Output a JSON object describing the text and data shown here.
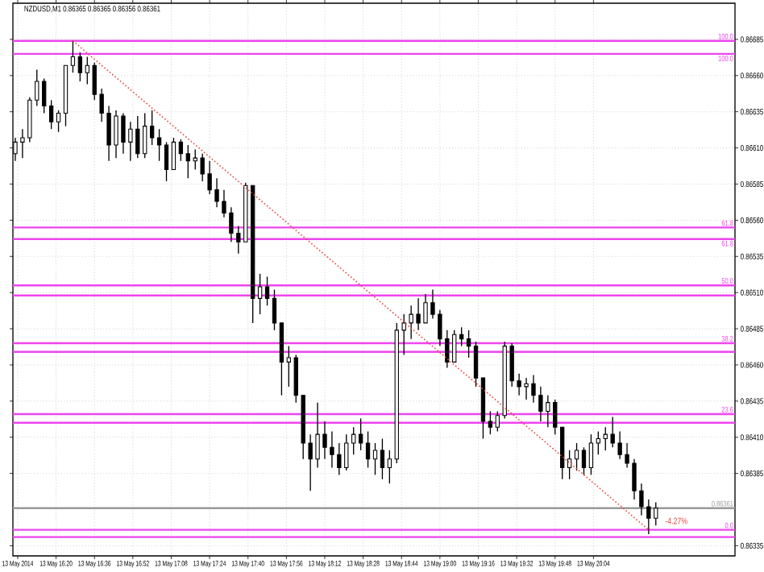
{
  "chart_data": {
    "type": "candlestick",
    "title": "NZDUSD,M1  0.86365 0.86365 0.86356 0.86361",
    "color": "#000000",
    "x": [
      "2014-05-13T16:03",
      "2014-05-13T16:06",
      "2014-05-13T16:09",
      "2014-05-13T16:12",
      "2014-05-13T16:15",
      "2014-05-13T16:18",
      "2014-05-13T16:21",
      "2014-05-13T16:24",
      "2014-05-13T16:27",
      "2014-05-13T16:30",
      "2014-05-13T16:33",
      "2014-05-13T16:36",
      "2014-05-13T16:39",
      "2014-05-13T16:42",
      "2014-05-13T16:45",
      "2014-05-13T16:48",
      "2014-05-13T16:51",
      "2014-05-13T16:54",
      "2014-05-13T16:57",
      "2014-05-13T17:00",
      "2014-05-13T17:03",
      "2014-05-13T17:06",
      "2014-05-13T17:09",
      "2014-05-13T17:12",
      "2014-05-13T17:15",
      "2014-05-13T17:18",
      "2014-05-13T17:21",
      "2014-05-13T17:24",
      "2014-05-13T17:27",
      "2014-05-13T17:30",
      "2014-05-13T17:33",
      "2014-05-13T17:36",
      "2014-05-13T17:39",
      "2014-05-13T17:42",
      "2014-05-13T17:45",
      "2014-05-13T17:48",
      "2014-05-13T17:51",
      "2014-05-13T17:54",
      "2014-05-13T17:57",
      "2014-05-13T18:00",
      "2014-05-13T18:03",
      "2014-05-13T18:06",
      "2014-05-13T18:09",
      "2014-05-13T18:12",
      "2014-05-13T18:15",
      "2014-05-13T18:18",
      "2014-05-13T18:21",
      "2014-05-13T18:24",
      "2014-05-13T18:27",
      "2014-05-13T18:30",
      "2014-05-13T18:33",
      "2014-05-13T18:36",
      "2014-05-13T18:39",
      "2014-05-13T18:42",
      "2014-05-13T18:45",
      "2014-05-13T18:48",
      "2014-05-13T18:51",
      "2014-05-13T18:54",
      "2014-05-13T18:57",
      "2014-05-13T19:00",
      "2014-05-13T19:03",
      "2014-05-13T19:06",
      "2014-05-13T19:09",
      "2014-05-13T19:12",
      "2014-05-13T19:15",
      "2014-05-13T19:18",
      "2014-05-13T19:21",
      "2014-05-13T19:24",
      "2014-05-13T19:27",
      "2014-05-13T19:30",
      "2014-05-13T19:33",
      "2014-05-13T19:36",
      "2014-05-13T19:39",
      "2014-05-13T19:42",
      "2014-05-13T19:45",
      "2014-05-13T19:48",
      "2014-05-13T19:51",
      "2014-05-13T19:54",
      "2014-05-13T19:57",
      "2014-05-13T20:00",
      "2014-05-13T20:03",
      "2014-05-13T20:06",
      "2014-05-13T20:09",
      "2014-05-13T20:12",
      "2014-05-13T20:15",
      "2014-05-13T20:18",
      "2014-05-13T20:21",
      "2014-05-13T20:24",
      "2014-05-13T20:27",
      "2014-05-13T20:30"
    ],
    "ohlc": [
      [
        0.86606,
        0.86617,
        0.86601,
        0.86614
      ],
      [
        0.86614,
        0.86623,
        0.86603,
        0.86617
      ],
      [
        0.86617,
        0.86645,
        0.86614,
        0.86643
      ],
      [
        0.86643,
        0.86664,
        0.86639,
        0.86656
      ],
      [
        0.86656,
        0.86658,
        0.86634,
        0.86639
      ],
      [
        0.86639,
        0.86643,
        0.86623,
        0.86628
      ],
      [
        0.86628,
        0.86636,
        0.86621,
        0.86634
      ],
      [
        0.86634,
        0.86667,
        0.86625,
        0.86667
      ],
      [
        0.86667,
        0.86684,
        0.86662,
        0.86673
      ],
      [
        0.86673,
        0.86676,
        0.86656,
        0.86662
      ],
      [
        0.86662,
        0.86673,
        0.86654,
        0.86667
      ],
      [
        0.86667,
        0.86669,
        0.86643,
        0.86647
      ],
      [
        0.86647,
        0.86651,
        0.86628,
        0.86634
      ],
      [
        0.86634,
        0.86639,
        0.86601,
        0.86612
      ],
      [
        0.86612,
        0.86636,
        0.86603,
        0.86632
      ],
      [
        0.86632,
        0.86634,
        0.86606,
        0.86614
      ],
      [
        0.86614,
        0.86628,
        0.86601,
        0.86623
      ],
      [
        0.86623,
        0.86632,
        0.86603,
        0.86606
      ],
      [
        0.86606,
        0.86634,
        0.86603,
        0.86625
      ],
      [
        0.86625,
        0.86636,
        0.86612,
        0.86617
      ],
      [
        0.86617,
        0.86623,
        0.86601,
        0.86612
      ],
      [
        0.86612,
        0.86614,
        0.86587,
        0.86595
      ],
      [
        0.86595,
        0.86617,
        0.86595,
        0.86614
      ],
      [
        0.86614,
        0.86616,
        0.86601,
        0.86606
      ],
      [
        0.86606,
        0.86612,
        0.86589,
        0.86601
      ],
      [
        0.86601,
        0.86609,
        0.86595,
        0.86603
      ],
      [
        0.86603,
        0.86606,
        0.86587,
        0.86592
      ],
      [
        0.86592,
        0.86601,
        0.86578,
        0.86581
      ],
      [
        0.86581,
        0.86589,
        0.86569,
        0.86573
      ],
      [
        0.86573,
        0.86581,
        0.86562,
        0.86565
      ],
      [
        0.86565,
        0.86569,
        0.86545,
        0.86551
      ],
      [
        0.86551,
        0.86556,
        0.86537,
        0.86545
      ],
      [
        0.86545,
        0.86586,
        0.86545,
        0.86584
      ],
      [
        0.86584,
        0.86584,
        0.86489,
        0.86506
      ],
      [
        0.86506,
        0.86523,
        0.86495,
        0.86514
      ],
      [
        0.86514,
        0.86521,
        0.86501,
        0.86506
      ],
      [
        0.86506,
        0.86512,
        0.86484,
        0.86489
      ],
      [
        0.86489,
        0.86489,
        0.86439,
        0.86462
      ],
      [
        0.86462,
        0.86473,
        0.86445,
        0.86465
      ],
      [
        0.86465,
        0.86467,
        0.86434,
        0.86439
      ],
      [
        0.86439,
        0.86439,
        0.86395,
        0.86406
      ],
      [
        0.86406,
        0.86412,
        0.86373,
        0.86395
      ],
      [
        0.86395,
        0.86434,
        0.86389,
        0.86412
      ],
      [
        0.86412,
        0.86421,
        0.86395,
        0.86403
      ],
      [
        0.86403,
        0.86414,
        0.86389,
        0.86398
      ],
      [
        0.86398,
        0.86406,
        0.86384,
        0.86389
      ],
      [
        0.86389,
        0.86412,
        0.86387,
        0.86406
      ],
      [
        0.86406,
        0.86417,
        0.86398,
        0.86412
      ],
      [
        0.86412,
        0.86423,
        0.86401,
        0.86406
      ],
      [
        0.86406,
        0.86414,
        0.86389,
        0.86395
      ],
      [
        0.86395,
        0.86406,
        0.86384,
        0.86401
      ],
      [
        0.86401,
        0.86409,
        0.86381,
        0.86389
      ],
      [
        0.86389,
        0.86401,
        0.86378,
        0.86395
      ],
      [
        0.86395,
        0.86489,
        0.86392,
        0.86484
      ],
      [
        0.86484,
        0.86495,
        0.86467,
        0.86489
      ],
      [
        0.86489,
        0.86501,
        0.86478,
        0.86495
      ],
      [
        0.86495,
        0.86506,
        0.86484,
        0.86489
      ],
      [
        0.86489,
        0.86509,
        0.86489,
        0.86503
      ],
      [
        0.86503,
        0.86512,
        0.86492,
        0.86495
      ],
      [
        0.86495,
        0.86498,
        0.86473,
        0.86478
      ],
      [
        0.86478,
        0.86484,
        0.86458,
        0.86462
      ],
      [
        0.86462,
        0.86484,
        0.86462,
        0.86481
      ],
      [
        0.86481,
        0.86486,
        0.86473,
        0.86478
      ],
      [
        0.86478,
        0.86484,
        0.86465,
        0.86473
      ],
      [
        0.86473,
        0.86476,
        0.86445,
        0.86451
      ],
      [
        0.86451,
        0.86451,
        0.86409,
        0.86421
      ],
      [
        0.86421,
        0.86428,
        0.86412,
        0.86417
      ],
      [
        0.86417,
        0.86428,
        0.86414,
        0.86425
      ],
      [
        0.86425,
        0.86476,
        0.86423,
        0.86473
      ],
      [
        0.86473,
        0.86475,
        0.86445,
        0.86449
      ],
      [
        0.86449,
        0.86454,
        0.86439,
        0.86445
      ],
      [
        0.86445,
        0.86451,
        0.86436,
        0.86447
      ],
      [
        0.86447,
        0.86453,
        0.86434,
        0.86439
      ],
      [
        0.86439,
        0.86445,
        0.86421,
        0.86428
      ],
      [
        0.86428,
        0.86439,
        0.86417,
        0.86434
      ],
      [
        0.86434,
        0.86436,
        0.86412,
        0.86417
      ],
      [
        0.86417,
        0.86417,
        0.86381,
        0.86389
      ],
      [
        0.86389,
        0.86401,
        0.86381,
        0.86395
      ],
      [
        0.86395,
        0.86406,
        0.86387,
        0.86401
      ],
      [
        0.86401,
        0.86403,
        0.86384,
        0.86389
      ],
      [
        0.86389,
        0.86412,
        0.86384,
        0.86406
      ],
      [
        0.86406,
        0.86414,
        0.86398,
        0.86409
      ],
      [
        0.86409,
        0.86417,
        0.86401,
        0.86412
      ],
      [
        0.86412,
        0.86424,
        0.86403,
        0.86406
      ],
      [
        0.86406,
        0.86414,
        0.86395,
        0.86398
      ],
      [
        0.86398,
        0.86406,
        0.86389,
        0.86392
      ],
      [
        0.86392,
        0.86395,
        0.86367,
        0.86373
      ],
      [
        0.86373,
        0.86378,
        0.86356,
        0.86362
      ],
      [
        0.86362,
        0.86367,
        0.86343,
        0.86354
      ],
      [
        0.86354,
        0.86365,
        0.86349,
        0.86361
      ]
    ],
    "series": [
      {
        "type": "line",
        "x": [
          "2014-05-13T16:27",
          "2014-05-13T20:27"
        ],
        "values": [
          0.86684,
          0.86346
        ],
        "color": "#e8453c",
        "line_style": "dotted"
      }
    ],
    "annotations": [
      {
        "text": "-4.27%",
        "x": "2014-05-13T20:27",
        "y": 0.86346
      },
      "100.0",
      "100.0",
      "61.8",
      "61.8",
      "50.0",
      "38.2",
      "23.6",
      "0.0"
    ],
    "ref_lines": [
      {
        "axis": "y",
        "value": 0.86684,
        "color": "#ee44ee"
      },
      {
        "axis": "y",
        "value": 0.86675,
        "color": "#ee44ee"
      },
      {
        "axis": "y",
        "value": 0.86555,
        "color": "#ee44ee"
      },
      {
        "axis": "y",
        "value": 0.86547,
        "color": "#ee44ee"
      },
      {
        "axis": "y",
        "value": 0.86515,
        "color": "#ee44ee"
      },
      {
        "axis": "y",
        "value": 0.86508,
        "color": "#ee44ee"
      },
      {
        "axis": "y",
        "value": 0.86475,
        "color": "#ee44ee"
      },
      {
        "axis": "y",
        "value": 0.86469,
        "color": "#ee44ee"
      },
      {
        "axis": "y",
        "value": 0.86426,
        "color": "#ee44ee"
      },
      {
        "axis": "y",
        "value": 0.8642,
        "color": "#ee44ee"
      },
      {
        "axis": "y",
        "value": 0.86346,
        "color": "#ee44ee"
      },
      {
        "axis": "y",
        "value": 0.86341,
        "color": "#ee44ee"
      },
      {
        "axis": "y",
        "value": 0.86361,
        "label": "0.86361",
        "color": "#9a9a9a"
      }
    ],
    "xlim": [
      "2014-05-13T16:02",
      "2014-05-13T21:03"
    ],
    "ylim": [
      0.86328,
      0.8671
    ],
    "xticks": [
      {
        "value": "2014-05-13T16:04",
        "label": "13 May 2014"
      },
      {
        "value": "2014-05-13T16:20",
        "label": "13 May 16:20"
      },
      {
        "value": "2014-05-13T16:36",
        "label": "13 May 16:36"
      },
      {
        "value": "2014-05-13T16:52",
        "label": "13 May 16:52"
      },
      {
        "value": "2014-05-13T17:08",
        "label": "13 May 17:08"
      },
      {
        "value": "2014-05-13T17:24",
        "label": "13 May 17:24"
      },
      {
        "value": "2014-05-13T17:40",
        "label": "13 May 17:40"
      },
      {
        "value": "2014-05-13T17:56",
        "label": "13 May 17:56"
      },
      {
        "value": "2014-05-13T18:12",
        "label": "13 May 18:12"
      },
      {
        "value": "2014-05-13T18:28",
        "label": "13 May 18:28"
      },
      {
        "value": "2014-05-13T18:44",
        "label": "13 May 18:44"
      },
      {
        "value": "2014-05-13T19:00",
        "label": "13 May 19:00"
      },
      {
        "value": "2014-05-13T19:16",
        "label": "13 May 19:16"
      },
      {
        "value": "2014-05-13T19:32",
        "label": "13 May 19:32"
      },
      {
        "value": "2014-05-13T19:48",
        "label": "13 May 19:48"
      },
      {
        "value": "2014-05-13T20:04",
        "label": "13 May 20:04"
      }
    ],
    "yticks": [
      0.86335,
      {
        "value": 0.86385,
        "label": "0.86385"
      },
      {
        "value": 0.8641,
        "label": "0.86410"
      },
      0.86435,
      {
        "value": 0.8646,
        "label": "0.86460"
      },
      0.86485,
      {
        "value": 0.8651,
        "label": "0.86510"
      },
      0.86535,
      {
        "value": 0.8656,
        "label": "0.86560"
      },
      0.86585,
      {
        "value": 0.8661,
        "label": "0.86610"
      },
      0.86635,
      {
        "value": 0.8666,
        "label": "0.86660"
      },
      0.86685
    ],
    "grid": true
  }
}
